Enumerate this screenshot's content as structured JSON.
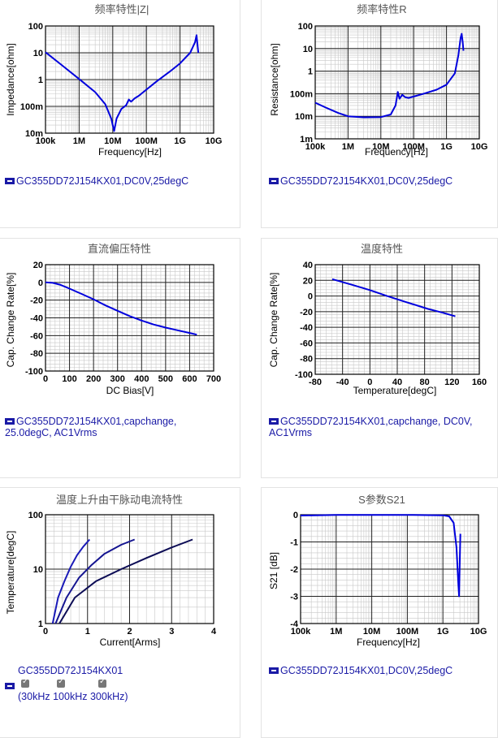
{
  "chart_data": [
    {
      "type": "line",
      "title": "频率特性|Z|",
      "xlabel": "Frequency[Hz]",
      "ylabel": "Impedance[ohm]",
      "xscale": "log",
      "yscale": "log",
      "xlim": [
        100000,
        10000000000
      ],
      "ylim": [
        0.01,
        100
      ],
      "xticks": [
        {
          "v": 100000,
          "label": "100k"
        },
        {
          "v": 1000000,
          "label": "1M"
        },
        {
          "v": 10000000,
          "label": "10M"
        },
        {
          "v": 100000000,
          "label": "100M"
        },
        {
          "v": 1000000000,
          "label": "1G"
        },
        {
          "v": 10000000000,
          "label": "10G"
        }
      ],
      "yticks": [
        {
          "v": 0.01,
          "label": "10m"
        },
        {
          "v": 0.1,
          "label": "100m"
        },
        {
          "v": 1,
          "label": "1"
        },
        {
          "v": 10,
          "label": "10"
        },
        {
          "v": 100,
          "label": "100"
        }
      ],
      "series": [
        {
          "color": "#0000dd",
          "points": [
            [
              100000,
              10.5
            ],
            [
              300000,
              3.5
            ],
            [
              1000000,
              1.05
            ],
            [
              3000000,
              0.34
            ],
            [
              6000000,
              0.12
            ],
            [
              9000000,
              0.035
            ],
            [
              11000000,
              0.012
            ],
            [
              13000000,
              0.035
            ],
            [
              18000000,
              0.08
            ],
            [
              25000000,
              0.11
            ],
            [
              30000000,
              0.18
            ],
            [
              35000000,
              0.15
            ],
            [
              45000000,
              0.2
            ],
            [
              60000000,
              0.25
            ],
            [
              100000000,
              0.42
            ],
            [
              200000000,
              0.85
            ],
            [
              500000000,
              2
            ],
            [
              1000000000,
              4
            ],
            [
              2000000000,
              10
            ],
            [
              2800000000,
              25
            ],
            [
              3100000000,
              45
            ],
            [
              3300000000,
              20
            ],
            [
              3500000000,
              10
            ]
          ]
        }
      ],
      "legend": "GC355DD72J154KX01,DC0V,25degC"
    },
    {
      "type": "line",
      "title": "频率特性R",
      "xlabel": "Frequency[Hz]",
      "ylabel": "Resistance[ohm]",
      "xscale": "log",
      "yscale": "log",
      "xlim": [
        100000,
        10000000000
      ],
      "ylim": [
        0.001,
        100
      ],
      "xticks": [
        {
          "v": 100000,
          "label": "100k"
        },
        {
          "v": 1000000,
          "label": "1M"
        },
        {
          "v": 10000000,
          "label": "10M"
        },
        {
          "v": 100000000,
          "label": "100M"
        },
        {
          "v": 1000000000,
          "label": "1G"
        },
        {
          "v": 10000000000,
          "label": "10G"
        }
      ],
      "yticks": [
        {
          "v": 0.001,
          "label": "1m"
        },
        {
          "v": 0.01,
          "label": "10m"
        },
        {
          "v": 0.1,
          "label": "100m"
        },
        {
          "v": 1,
          "label": "1"
        },
        {
          "v": 10,
          "label": "10"
        },
        {
          "v": 100,
          "label": "100"
        }
      ],
      "series": [
        {
          "color": "#0000dd",
          "points": [
            [
              100000,
              0.04
            ],
            [
              200000,
              0.025
            ],
            [
              500000,
              0.014
            ],
            [
              1000000,
              0.01
            ],
            [
              3000000,
              0.009
            ],
            [
              10000000,
              0.0092
            ],
            [
              20000000,
              0.012
            ],
            [
              28000000,
              0.03
            ],
            [
              33000000,
              0.12
            ],
            [
              37000000,
              0.06
            ],
            [
              45000000,
              0.09
            ],
            [
              55000000,
              0.07
            ],
            [
              70000000,
              0.065
            ],
            [
              100000000,
              0.075
            ],
            [
              200000000,
              0.1
            ],
            [
              500000000,
              0.15
            ],
            [
              1000000000,
              0.25
            ],
            [
              1800000000,
              0.8
            ],
            [
              2300000000,
              5
            ],
            [
              2700000000,
              30
            ],
            [
              2900000000,
              45
            ],
            [
              3100000000,
              20
            ],
            [
              3300000000,
              8
            ]
          ]
        }
      ],
      "legend": "GC355DD72J154KX01,DC0V,25degC"
    },
    {
      "type": "line",
      "title": "直流偏压特性",
      "xlabel": "DC Bias[V]",
      "ylabel": "Cap. Change Rate[%]",
      "xlim": [
        0,
        700
      ],
      "ylim": [
        -100,
        20
      ],
      "xticks": [
        {
          "v": 0,
          "label": "0"
        },
        {
          "v": 100,
          "label": "100"
        },
        {
          "v": 200,
          "label": "200"
        },
        {
          "v": 300,
          "label": "300"
        },
        {
          "v": 400,
          "label": "400"
        },
        {
          "v": 500,
          "label": "500"
        },
        {
          "v": 600,
          "label": "600"
        },
        {
          "v": 700,
          "label": "700"
        }
      ],
      "yticks": [
        {
          "v": -100,
          "label": "-100"
        },
        {
          "v": -80,
          "label": "-80"
        },
        {
          "v": -60,
          "label": "-60"
        },
        {
          "v": -40,
          "label": "-40"
        },
        {
          "v": -20,
          "label": "-20"
        },
        {
          "v": 0,
          "label": "0"
        },
        {
          "v": 20,
          "label": "20"
        }
      ],
      "series": [
        {
          "color": "#0000dd",
          "points": [
            [
              0,
              0
            ],
            [
              30,
              -0.5
            ],
            [
              60,
              -2.5
            ],
            [
              100,
              -7
            ],
            [
              150,
              -13
            ],
            [
              200,
              -19
            ],
            [
              250,
              -26
            ],
            [
              300,
              -32
            ],
            [
              350,
              -38
            ],
            [
              400,
              -43
            ],
            [
              450,
              -47.5
            ],
            [
              500,
              -51
            ],
            [
              550,
              -54
            ],
            [
              600,
              -57
            ],
            [
              630,
              -59
            ]
          ]
        }
      ],
      "legend": "GC355DD72J154KX01,capchange, 25.0degC, AC1Vrms"
    },
    {
      "type": "line",
      "title": "温度特性",
      "xlabel": "Temperature[degC]",
      "ylabel": "Cap. Change Rate[%]",
      "xlim": [
        -80,
        160
      ],
      "ylim": [
        -100,
        40
      ],
      "xticks": [
        {
          "v": -80,
          "label": "-80"
        },
        {
          "v": -40,
          "label": "-40"
        },
        {
          "v": 0,
          "label": "0"
        },
        {
          "v": 40,
          "label": "40"
        },
        {
          "v": 80,
          "label": "80"
        },
        {
          "v": 120,
          "label": "120"
        },
        {
          "v": 160,
          "label": "160"
        }
      ],
      "yticks": [
        {
          "v": -100,
          "label": "-100"
        },
        {
          "v": -80,
          "label": "-80"
        },
        {
          "v": -60,
          "label": "-60"
        },
        {
          "v": -40,
          "label": "-40"
        },
        {
          "v": -20,
          "label": "-20"
        },
        {
          "v": 0,
          "label": "0"
        },
        {
          "v": 20,
          "label": "20"
        },
        {
          "v": 40,
          "label": "40"
        }
      ],
      "series": [
        {
          "color": "#0000dd",
          "points": [
            [
              -55,
              21.5
            ],
            [
              -25,
              14
            ],
            [
              0,
              7.5
            ],
            [
              25,
              0
            ],
            [
              50,
              -7
            ],
            [
              85,
              -16.5
            ],
            [
              105,
              -21
            ],
            [
              125,
              -26
            ]
          ]
        }
      ],
      "legend": "GC355DD72J154KX01,capchange, DC0V, AC1Vrms"
    },
    {
      "type": "line",
      "title": "温度上升由干脉动电流特性",
      "xlabel": "Current[Arms]",
      "ylabel": "Temperature[degC]",
      "yscale": "log",
      "xlim": [
        0,
        4
      ],
      "ylim": [
        1,
        100
      ],
      "xticks": [
        {
          "v": 0,
          "label": "0"
        },
        {
          "v": 1,
          "label": "1"
        },
        {
          "v": 2,
          "label": "2"
        },
        {
          "v": 3,
          "label": "3"
        },
        {
          "v": 4,
          "label": "4"
        }
      ],
      "yticks": [
        {
          "v": 1,
          "label": "1"
        },
        {
          "v": 10,
          "label": "10"
        },
        {
          "v": 100,
          "label": "100"
        }
      ],
      "series": [
        {
          "color": "#1a1ab8",
          "points": [
            [
              0.17,
              1
            ],
            [
              0.3,
              3
            ],
            [
              0.45,
              6
            ],
            [
              0.6,
              11
            ],
            [
              0.75,
              18
            ],
            [
              0.9,
              26
            ],
            [
              1.05,
              35
            ]
          ]
        },
        {
          "color": "#141490",
          "points": [
            [
              0.24,
              1
            ],
            [
              0.5,
              3
            ],
            [
              0.8,
              7
            ],
            [
              1.1,
              12
            ],
            [
              1.4,
              19
            ],
            [
              1.8,
              28
            ],
            [
              2.12,
              35
            ]
          ]
        },
        {
          "color": "#0c0c55",
          "points": [
            [
              0.33,
              1
            ],
            [
              0.7,
              3
            ],
            [
              1.2,
              6
            ],
            [
              1.8,
              10
            ],
            [
              2.4,
              16
            ],
            [
              3.0,
              25
            ],
            [
              3.5,
              35
            ]
          ]
        }
      ],
      "legend": "GC355DD72J154KX01",
      "checkbox_labels": [
        "30kHz",
        "100kHz",
        "300kHz"
      ]
    },
    {
      "type": "line",
      "title": "S参数S21",
      "xlabel": "Frequency[Hz]",
      "ylabel": "S21 [dB]",
      "xscale": "log",
      "xlim": [
        100000,
        10000000000
      ],
      "ylim": [
        -4,
        0
      ],
      "xticks": [
        {
          "v": 100000,
          "label": "100k"
        },
        {
          "v": 1000000,
          "label": "1M"
        },
        {
          "v": 10000000,
          "label": "10M"
        },
        {
          "v": 100000000,
          "label": "100M"
        },
        {
          "v": 1000000000,
          "label": "1G"
        },
        {
          "v": 10000000000,
          "label": "10G"
        }
      ],
      "yticks": [
        {
          "v": -4,
          "label": "-4"
        },
        {
          "v": -3,
          "label": "-3"
        },
        {
          "v": -2,
          "label": "-2"
        },
        {
          "v": -1,
          "label": "-1"
        },
        {
          "v": 0,
          "label": "0"
        }
      ],
      "series": [
        {
          "color": "#0000dd",
          "points": [
            [
              100000,
              -0.03
            ],
            [
              1000000,
              -0.01
            ],
            [
              10000000,
              -0.005
            ],
            [
              100000000,
              -0.005
            ],
            [
              1000000000,
              -0.02
            ],
            [
              1500000000,
              -0.06
            ],
            [
              2000000000,
              -0.3
            ],
            [
              2400000000,
              -1.2
            ],
            [
              2700000000,
              -2.5
            ],
            [
              2850000000,
              -3.0
            ],
            [
              3000000000,
              -1.5
            ],
            [
              3100000000,
              -0.7
            ]
          ]
        }
      ],
      "legend": "GC355DD72J154KX01,DC0V,25degC"
    }
  ]
}
